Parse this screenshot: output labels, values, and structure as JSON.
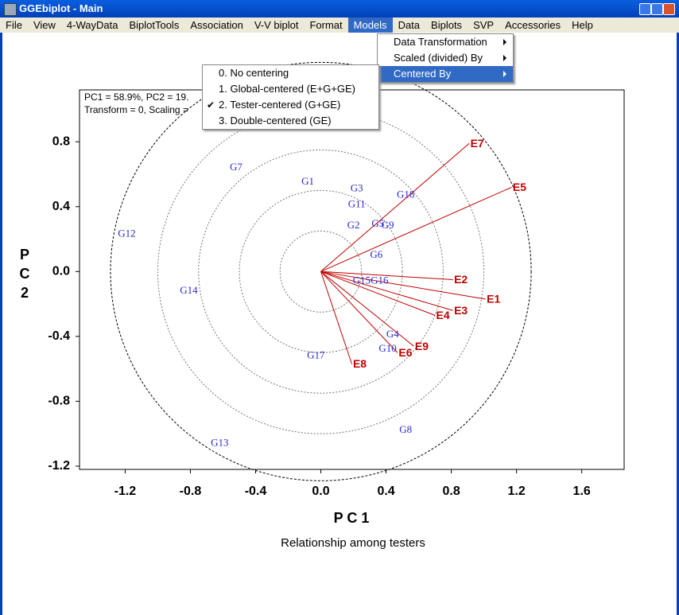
{
  "window": {
    "title": "GGEbiplot - Main"
  },
  "menu_bar": {
    "items": [
      "File",
      "View",
      "4-WayData",
      "BiplotTools",
      "Association",
      "V-V biplot",
      "Format",
      "Models",
      "Data",
      "Biplots",
      "SVP",
      "Accessories",
      "Help"
    ],
    "active": 7
  },
  "models_menu": {
    "items": [
      "Data Transformation",
      "Scaled (divided) By",
      "Centered By"
    ],
    "active": 2
  },
  "centered_menu": {
    "items": [
      "0. No centering",
      "1. Global-centered (E+G+GE)",
      "2. Tester-centered (G+GE)",
      "3. Double-centered (GE)"
    ],
    "checked": 2
  },
  "chart_data": {
    "type": "biplot",
    "annotations": [
      "PC1 = 58.9%, PC2 = 19.",
      "Transform = 0, Scaling ="
    ],
    "x_label": "P C 1",
    "y_label": "P C 2",
    "subtitle": "Relationship among testers",
    "xlim": [
      -1.48,
      1.86
    ],
    "ylim": [
      -1.22,
      1.12
    ],
    "xticks": [
      -1.2,
      -0.8,
      -0.4,
      {
        "value": 0,
        "label": "0.0"
      },
      0.4,
      0.8,
      1.2,
      1.6
    ],
    "yticks": [
      -1.2,
      -0.8,
      -0.4,
      {
        "value": 0,
        "label": "0.0"
      },
      0.4,
      0.8
    ],
    "circle_radii": [
      0.25,
      0.5,
      0.75,
      1.0,
      1.29
    ],
    "points": {
      "color": "#2a2ad0",
      "labels": [
        "G7",
        "G1",
        "G3",
        "G18",
        "G11",
        "G12",
        "G2",
        "G5",
        "G9",
        "G6",
        "G15",
        "G16",
        "G14",
        "G4",
        "G10",
        "G17",
        "G8",
        "G13"
      ],
      "x": [
        -0.52,
        -0.08,
        0.22,
        0.52,
        0.22,
        -1.19,
        0.2,
        0.35,
        0.41,
        0.34,
        0.25,
        0.36,
        -0.81,
        0.44,
        0.41,
        -0.03,
        0.52,
        -0.62
      ],
      "y": [
        0.64,
        0.55,
        0.51,
        0.47,
        0.41,
        0.23,
        0.28,
        0.29,
        0.28,
        0.1,
        -0.06,
        -0.06,
        -0.12,
        -0.39,
        -0.48,
        -0.52,
        -0.98,
        -1.06
      ]
    },
    "vectors": {
      "color": "#c00000",
      "labels": [
        "E7",
        "E5",
        "E2",
        "E1",
        "E3",
        "E4",
        "E9",
        "E6",
        "E8"
      ],
      "x": [
        0.91,
        1.17,
        0.81,
        1.01,
        0.81,
        0.7,
        0.57,
        0.47,
        0.19
      ],
      "y": [
        0.79,
        0.52,
        -0.05,
        -0.17,
        -0.24,
        -0.27,
        -0.46,
        -0.5,
        -0.57
      ]
    }
  }
}
